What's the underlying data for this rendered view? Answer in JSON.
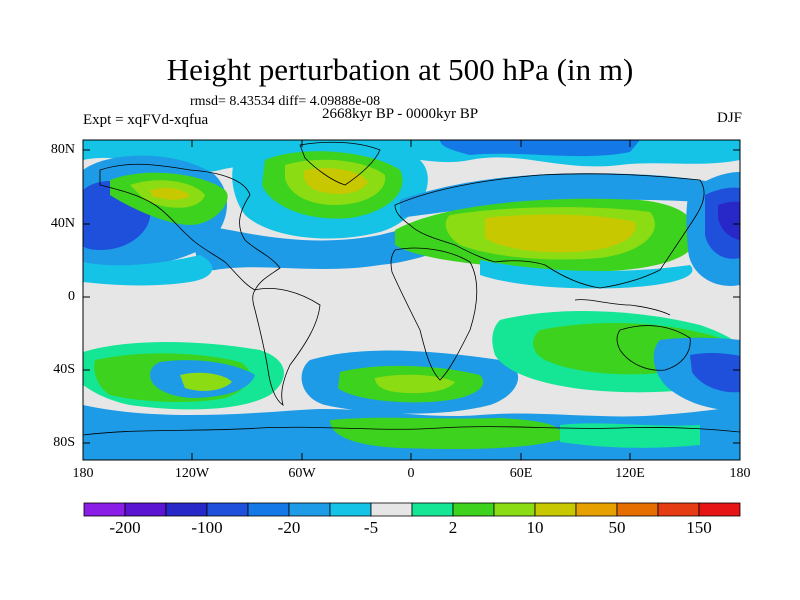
{
  "title": "Height perturbation at 500 hPa (in m)",
  "stats": "rmsd= 8.43534  diff= 4.09888e-08",
  "period": "2668kyr BP - 0000kyr BP",
  "experiment": "Expt = xqFVd-xqfua",
  "season": "DJF",
  "lat_ticks": [
    "80N",
    "40N",
    "0",
    "40S",
    "80S"
  ],
  "lon_ticks": [
    "180",
    "120W",
    "60W",
    "0",
    "60E",
    "120E",
    "180"
  ],
  "colorbar": {
    "colors": [
      "#8a1ee6",
      "#5a14d2",
      "#2828c8",
      "#1e50dc",
      "#1478e6",
      "#1e9be6",
      "#14c3e6",
      "#e6e6e6",
      "#14e696",
      "#3cd21e",
      "#8cdc14",
      "#c8c800",
      "#e6a000",
      "#e66e00",
      "#e63c14",
      "#e61414"
    ],
    "labels": [
      "-200",
      "-100",
      "-20",
      "-5",
      "2",
      "10",
      "50",
      "150"
    ]
  },
  "palette": {
    "land": "#000000",
    "neutral": "#e6e6e6"
  }
}
